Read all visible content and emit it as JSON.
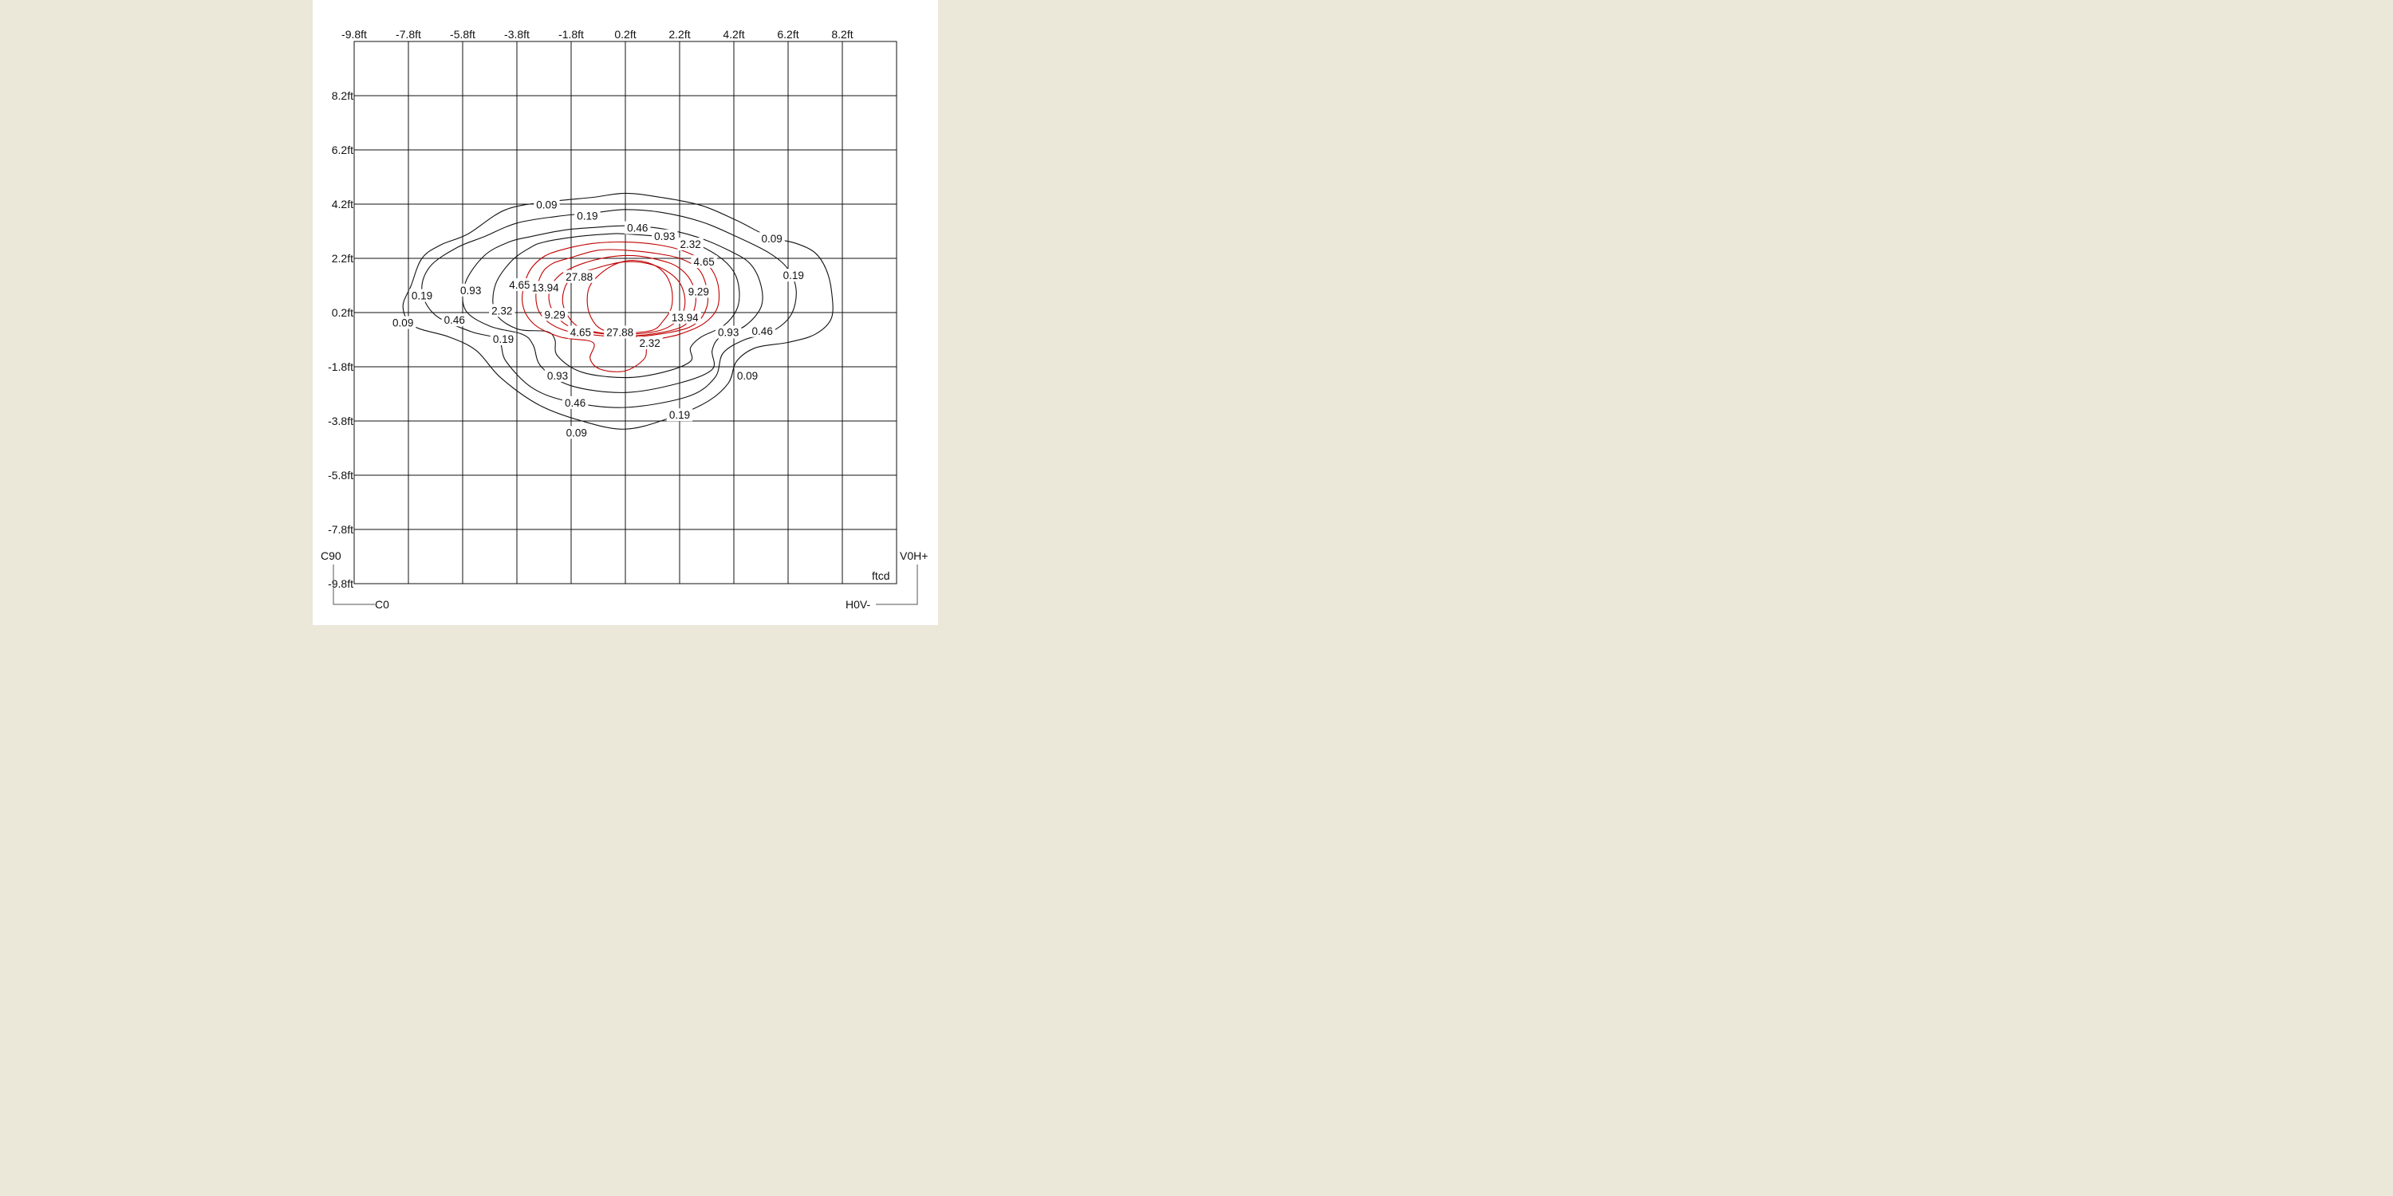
{
  "chart_data": {
    "type": "contour",
    "title": "",
    "unit_label": "ftcd",
    "x_ticks": [
      "-9.8ft",
      "-7.8ft",
      "-5.8ft",
      "-3.8ft",
      "-1.8ft",
      "0.2ft",
      "2.2ft",
      "4.2ft",
      "6.2ft",
      "8.2ft"
    ],
    "y_ticks": [
      "8.2ft",
      "6.2ft",
      "4.2ft",
      "2.2ft",
      "0.2ft",
      "-1.8ft",
      "-3.8ft",
      "-5.8ft",
      "-7.8ft",
      "-9.8ft"
    ],
    "xlim": [
      -9.8,
      10.2
    ],
    "ylim": [
      -9.8,
      10.2
    ],
    "grid": true,
    "corner_labels": {
      "top_left": "C90",
      "bottom_left": "C0",
      "top_right": "V0H+",
      "bottom_right": "H0V-"
    },
    "levels": [
      {
        "value": "0.09",
        "color": "#111111",
        "points": [
          [
            -4.2,
            4.0
          ],
          [
            -2.5,
            4.3
          ],
          [
            -1.0,
            4.45
          ],
          [
            0.2,
            4.6
          ],
          [
            1.5,
            4.45
          ],
          [
            3.0,
            4.15
          ],
          [
            4.3,
            3.6
          ],
          [
            5.5,
            3.0
          ],
          [
            6.5,
            2.75
          ],
          [
            7.2,
            2.4
          ],
          [
            7.6,
            1.8
          ],
          [
            7.8,
            1.0
          ],
          [
            7.8,
            0.0
          ],
          [
            7.2,
            -0.6
          ],
          [
            6.2,
            -0.9
          ],
          [
            5.0,
            -1.1
          ],
          [
            4.3,
            -1.6
          ],
          [
            4.0,
            -2.4
          ],
          [
            3.2,
            -3.1
          ],
          [
            1.8,
            -3.7
          ],
          [
            0.2,
            -4.1
          ],
          [
            -1.4,
            -3.8
          ],
          [
            -3.0,
            -3.2
          ],
          [
            -4.4,
            -2.2
          ],
          [
            -5.3,
            -1.2
          ],
          [
            -6.3,
            -0.7
          ],
          [
            -7.6,
            -0.3
          ],
          [
            -8.0,
            0.4
          ],
          [
            -7.7,
            1.2
          ],
          [
            -7.3,
            2.2
          ],
          [
            -6.6,
            2.7
          ],
          [
            -5.6,
            3.1
          ],
          [
            -4.2,
            4.0
          ]
        ]
      },
      {
        "value": "0.19",
        "color": "#111111",
        "points": [
          [
            -3.8,
            3.5
          ],
          [
            -2.3,
            3.75
          ],
          [
            -0.8,
            3.9
          ],
          [
            0.2,
            4.0
          ],
          [
            1.5,
            3.9
          ],
          [
            3.0,
            3.55
          ],
          [
            4.3,
            3.0
          ],
          [
            5.5,
            2.4
          ],
          [
            6.2,
            1.8
          ],
          [
            6.5,
            1.0
          ],
          [
            6.3,
            0.1
          ],
          [
            5.6,
            -0.5
          ],
          [
            4.6,
            -0.8
          ],
          [
            3.8,
            -1.3
          ],
          [
            3.5,
            -2.2
          ],
          [
            2.5,
            -2.9
          ],
          [
            0.2,
            -3.3
          ],
          [
            -1.8,
            -3.1
          ],
          [
            -3.2,
            -2.6
          ],
          [
            -4.2,
            -1.6
          ],
          [
            -4.5,
            -0.8
          ],
          [
            -5.5,
            -0.5
          ],
          [
            -6.8,
            0.1
          ],
          [
            -7.3,
            1.0
          ],
          [
            -7.0,
            1.9
          ],
          [
            -6.0,
            2.6
          ],
          [
            -5.0,
            3.0
          ],
          [
            -3.8,
            3.5
          ]
        ]
      },
      {
        "value": "0.46",
        "color": "#111111",
        "points": [
          [
            -3.3,
            3.0
          ],
          [
            -2.0,
            3.25
          ],
          [
            -0.8,
            3.35
          ],
          [
            0.2,
            3.4
          ],
          [
            1.5,
            3.3
          ],
          [
            2.8,
            3.0
          ],
          [
            4.0,
            2.5
          ],
          [
            4.8,
            2.0
          ],
          [
            5.2,
            1.2
          ],
          [
            5.2,
            0.4
          ],
          [
            4.6,
            -0.3
          ],
          [
            3.7,
            -0.7
          ],
          [
            3.4,
            -1.2
          ],
          [
            3.4,
            -1.9
          ],
          [
            2.2,
            -2.4
          ],
          [
            0.2,
            -2.75
          ],
          [
            -1.8,
            -2.5
          ],
          [
            -2.9,
            -1.8
          ],
          [
            -3.2,
            -1.0
          ],
          [
            -3.6,
            -0.6
          ],
          [
            -4.8,
            -0.3
          ],
          [
            -5.7,
            0.3
          ],
          [
            -5.7,
            1.3
          ],
          [
            -5.0,
            2.3
          ],
          [
            -4.1,
            2.8
          ],
          [
            -3.3,
            3.0
          ]
        ]
      },
      {
        "value": "0.93",
        "color": "#111111",
        "points": [
          [
            -2.8,
            2.8
          ],
          [
            -1.6,
            3.0
          ],
          [
            -0.4,
            3.1
          ],
          [
            0.2,
            3.1
          ],
          [
            1.5,
            3.0
          ],
          [
            2.6,
            2.8
          ],
          [
            3.6,
            2.3
          ],
          [
            4.2,
            1.7
          ],
          [
            4.4,
            1.0
          ],
          [
            4.3,
            0.3
          ],
          [
            3.8,
            -0.3
          ],
          [
            3.0,
            -0.7
          ],
          [
            2.6,
            -1.1
          ],
          [
            2.6,
            -1.6
          ],
          [
            1.6,
            -2.0
          ],
          [
            0.2,
            -2.2
          ],
          [
            -1.4,
            -2.0
          ],
          [
            -2.3,
            -1.4
          ],
          [
            -2.4,
            -0.8
          ],
          [
            -2.7,
            -0.5
          ],
          [
            -3.8,
            -0.4
          ],
          [
            -4.6,
            0.2
          ],
          [
            -4.6,
            1.2
          ],
          [
            -4.0,
            2.1
          ],
          [
            -3.3,
            2.6
          ],
          [
            -2.8,
            2.8
          ]
        ]
      },
      {
        "value": "2.32",
        "color": "#c00000",
        "points": [
          [
            -2.2,
            2.5
          ],
          [
            -1.0,
            2.75
          ],
          [
            0.2,
            2.8
          ],
          [
            1.4,
            2.7
          ],
          [
            2.4,
            2.45
          ],
          [
            3.2,
            2.0
          ],
          [
            3.6,
            1.3
          ],
          [
            3.6,
            0.4
          ],
          [
            3.1,
            -0.2
          ],
          [
            2.2,
            -0.6
          ],
          [
            1.1,
            -0.9
          ],
          [
            0.9,
            -1.5
          ],
          [
            0.2,
            -1.95
          ],
          [
            -0.7,
            -1.9
          ],
          [
            -1.1,
            -1.5
          ],
          [
            -1.0,
            -0.9
          ],
          [
            -2.2,
            -0.7
          ],
          [
            -3.2,
            -0.2
          ],
          [
            -3.6,
            0.6
          ],
          [
            -3.4,
            1.6
          ],
          [
            -2.9,
            2.2
          ],
          [
            -2.2,
            2.5
          ]
        ]
      },
      {
        "value": "4.65",
        "color": "#c00000",
        "points": [
          [
            -1.9,
            2.2
          ],
          [
            -0.8,
            2.5
          ],
          [
            0.2,
            2.5
          ],
          [
            1.2,
            2.4
          ],
          [
            2.2,
            2.2
          ],
          [
            2.9,
            1.8
          ],
          [
            3.2,
            1.1
          ],
          [
            3.2,
            0.4
          ],
          [
            2.8,
            -0.2
          ],
          [
            2.0,
            -0.5
          ],
          [
            0.4,
            -0.7
          ],
          [
            -1.2,
            -0.6
          ],
          [
            -2.2,
            -0.4
          ],
          [
            -2.9,
            0.1
          ],
          [
            -3.1,
            0.8
          ],
          [
            -2.9,
            1.6
          ],
          [
            -2.5,
            2.0
          ],
          [
            -1.9,
            2.2
          ]
        ]
      },
      {
        "value": "9.29",
        "color": "#c00000",
        "points": [
          [
            -1.4,
            2.0
          ],
          [
            -0.4,
            2.25
          ],
          [
            0.5,
            2.3
          ],
          [
            1.4,
            2.15
          ],
          [
            2.1,
            1.9
          ],
          [
            2.6,
            1.4
          ],
          [
            2.8,
            0.7
          ],
          [
            2.6,
            0.0
          ],
          [
            2.1,
            -0.4
          ],
          [
            0.6,
            -0.65
          ],
          [
            -0.9,
            -0.55
          ],
          [
            -1.9,
            -0.3
          ],
          [
            -2.5,
            0.3
          ],
          [
            -2.6,
            1.0
          ],
          [
            -2.2,
            1.6
          ],
          [
            -1.4,
            2.0
          ]
        ]
      },
      {
        "value": "13.94",
        "color": "#c00000",
        "points": [
          [
            -1.0,
            1.8
          ],
          [
            0.0,
            2.05
          ],
          [
            0.8,
            2.05
          ],
          [
            1.6,
            1.8
          ],
          [
            2.2,
            1.3
          ],
          [
            2.4,
            0.6
          ],
          [
            2.2,
            0.0
          ],
          [
            1.5,
            -0.45
          ],
          [
            0.2,
            -0.6
          ],
          [
            -1.0,
            -0.5
          ],
          [
            -1.7,
            -0.2
          ],
          [
            -2.1,
            0.5
          ],
          [
            -2.0,
            1.2
          ],
          [
            -1.6,
            1.6
          ],
          [
            -1.0,
            1.8
          ]
        ]
      },
      {
        "value": "27.88",
        "color": "#c00000",
        "points": [
          [
            -0.5,
            1.8
          ],
          [
            0.2,
            2.1
          ],
          [
            1.0,
            2.05
          ],
          [
            1.6,
            1.7
          ],
          [
            1.9,
            1.1
          ],
          [
            1.9,
            0.4
          ],
          [
            1.6,
            -0.1
          ],
          [
            1.2,
            -0.45
          ],
          [
            0.2,
            -0.55
          ],
          [
            -0.6,
            -0.45
          ],
          [
            -1.0,
            -0.1
          ],
          [
            -1.2,
            0.5
          ],
          [
            -1.1,
            1.2
          ],
          [
            -0.5,
            1.8
          ]
        ]
      }
    ],
    "contour_labels": [
      {
        "text": "0.09",
        "x": -2.7,
        "y": 4.15
      },
      {
        "text": "0.19",
        "x": -1.2,
        "y": 3.75
      },
      {
        "text": "0.46",
        "x": 0.65,
        "y": 3.3
      },
      {
        "text": "0.93",
        "x": 1.65,
        "y": 3.0
      },
      {
        "text": "2.32",
        "x": 2.6,
        "y": 2.7
      },
      {
        "text": "0.09",
        "x": 5.6,
        "y": 2.9
      },
      {
        "text": "4.65",
        "x": 3.1,
        "y": 2.05
      },
      {
        "text": "0.19",
        "x": 6.4,
        "y": 1.55
      },
      {
        "text": "27.88",
        "x": -1.5,
        "y": 1.5
      },
      {
        "text": "4.65",
        "x": -3.7,
        "y": 1.2
      },
      {
        "text": "13.94",
        "x": -2.75,
        "y": 1.1
      },
      {
        "text": "0.93",
        "x": -5.5,
        "y": 1.0
      },
      {
        "text": "9.29",
        "x": 2.9,
        "y": 0.95
      },
      {
        "text": "0.19",
        "x": -7.3,
        "y": 0.8
      },
      {
        "text": "2.32",
        "x": -4.35,
        "y": 0.25
      },
      {
        "text": "9.29",
        "x": -2.4,
        "y": 0.1
      },
      {
        "text": "0.46",
        "x": -6.1,
        "y": -0.1
      },
      {
        "text": "13.94",
        "x": 2.4,
        "y": -0.0
      },
      {
        "text": "0.09",
        "x": -8.0,
        "y": -0.2
      },
      {
        "text": "4.65",
        "x": -1.45,
        "y": -0.55
      },
      {
        "text": "27.88",
        "x": 0.0,
        "y": -0.55
      },
      {
        "text": "0.93",
        "x": 4.0,
        "y": -0.55
      },
      {
        "text": "0.46",
        "x": 5.25,
        "y": -0.5
      },
      {
        "text": "0.19",
        "x": -4.3,
        "y": -0.8
      },
      {
        "text": "2.32",
        "x": 1.1,
        "y": -0.95
      },
      {
        "text": "0.93",
        "x": -2.3,
        "y": -2.15
      },
      {
        "text": "0.09",
        "x": 4.7,
        "y": -2.15
      },
      {
        "text": "0.46",
        "x": -1.65,
        "y": -3.15
      },
      {
        "text": "0.19",
        "x": 2.2,
        "y": -3.6
      },
      {
        "text": "0.09",
        "x": -1.6,
        "y": -4.25
      }
    ]
  }
}
